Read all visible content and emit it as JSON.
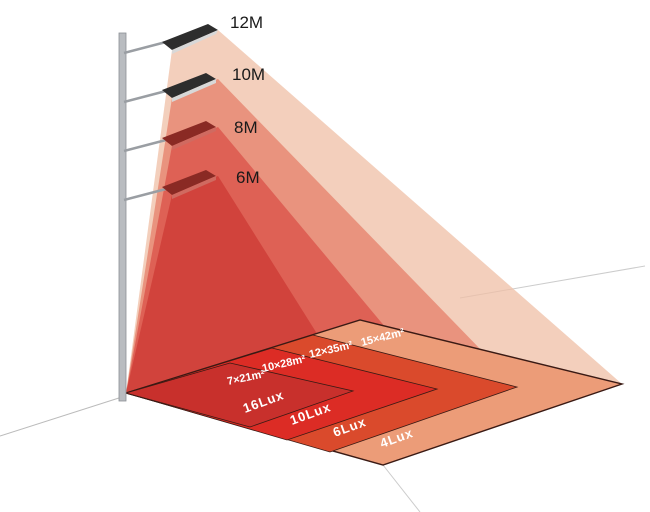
{
  "lamps": [
    {
      "height": "12M",
      "area": "15×42m²",
      "lux": "4Lux",
      "floor_color": "#ec9c78",
      "cone_color": "#efbfa6"
    },
    {
      "height": "10M",
      "area": "12×35m²",
      "lux": "6Lux",
      "floor_color": "#da4a2c",
      "cone_color": "#e57f6a"
    },
    {
      "height": "8M",
      "area": "10×28m²",
      "lux": "10Lux",
      "floor_color": "#dc2c25",
      "cone_color": "#d95048"
    },
    {
      "height": "6M",
      "area": "7×21m²",
      "lux": "16Lux",
      "floor_color": "#c8302c",
      "cone_color": "#cc3a34"
    }
  ]
}
